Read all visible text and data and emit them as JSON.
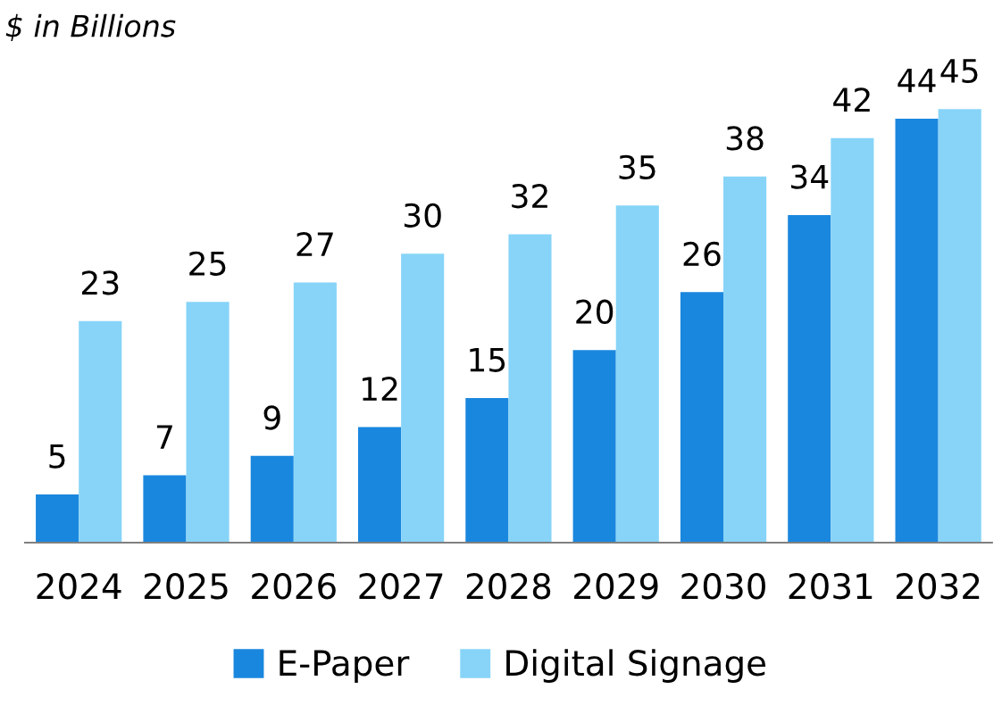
{
  "chart_data": {
    "type": "bar",
    "title": "$ in Billions",
    "categories": [
      "2024",
      "2025",
      "2026",
      "2027",
      "2028",
      "2029",
      "2030",
      "2031",
      "2032"
    ],
    "series": [
      {
        "name": "E-Paper",
        "color": "#1a87de",
        "values": [
          5,
          7,
          9,
          12,
          15,
          20,
          26,
          34,
          44
        ]
      },
      {
        "name": "Digital Signage",
        "color": "#87d4f8",
        "values": [
          23,
          25,
          27,
          30,
          32,
          35,
          38,
          42,
          45
        ]
      }
    ],
    "data_labels": true,
    "legend": "bottom",
    "grid": false
  }
}
